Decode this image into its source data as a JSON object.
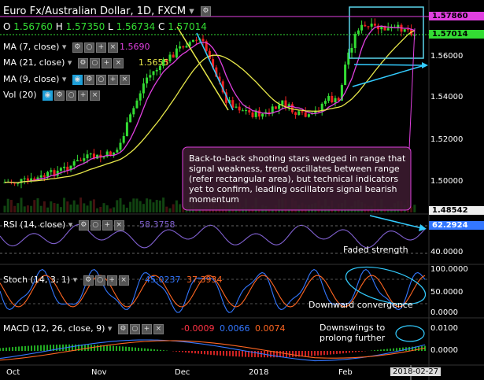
{
  "header": {
    "title": "Euro Fx/Australian Dollar, 1D, FXCM",
    "ohlc": {
      "o_label": "O",
      "o": "1.56760",
      "h_label": "H",
      "h": "1.57350",
      "l_label": "L",
      "l": "1.56734",
      "c_label": "C",
      "c": "1.57014"
    }
  },
  "indicators": {
    "ma7": {
      "label": "MA (7, close)",
      "value": "1.5690",
      "color": "#e040e0"
    },
    "ma21": {
      "label": "MA (21, close)",
      "value": "1.5655",
      "color": "#e8e84a"
    },
    "ma9": {
      "label": "MA (9, close)",
      "value": "",
      "color": "#33ccff"
    },
    "vol": {
      "label": "Vol (20)"
    },
    "rsi": {
      "label": "RSI (14, close)",
      "value": "58.3758",
      "color": "#8060d0"
    },
    "stoch": {
      "label": "Stoch (14, 3, 1)",
      "k": "45.0237",
      "d": "37.3934",
      "k_color": "#3377ff",
      "d_color": "#ff6622"
    },
    "macd": {
      "label": "MACD (12, 26, close, 9)",
      "hist": "-0.0009",
      "macd": "0.0066",
      "signal": "0.0074"
    }
  },
  "price_axis": {
    "labels": [
      "1.56000",
      "1.54000",
      "1.52000",
      "1.50000"
    ],
    "tag_top": {
      "value": "1.57860",
      "color": "#e040e0"
    },
    "tag_close": {
      "value": "1.57014",
      "color": "#33dd33"
    },
    "tag_bottom": {
      "value": "1.48542"
    }
  },
  "rsi_axis": {
    "tag": "62.2924",
    "labels": [
      "40.0000"
    ]
  },
  "stoch_axis": {
    "labels": [
      "100.0000",
      "50.0000",
      "0.0000"
    ]
  },
  "macd_axis": {
    "labels": [
      "0.0100",
      "0.0000"
    ]
  },
  "time_axis": {
    "labels": [
      "Oct",
      "Nov",
      "Dec",
      "2018",
      "Feb"
    ],
    "current": "2018-02-27"
  },
  "annotations": {
    "main_note": "Back-to-back shooting stars wedged in range that signal weakness, trend oscillates between range (refer rectangular area), but technical indicators yet to confirm, leading oscillators signal bearish momentum",
    "rsi_note": "Faded strength",
    "stoch_note": "Downward convergence",
    "macd_note": "Downswings to prolong further"
  }
}
